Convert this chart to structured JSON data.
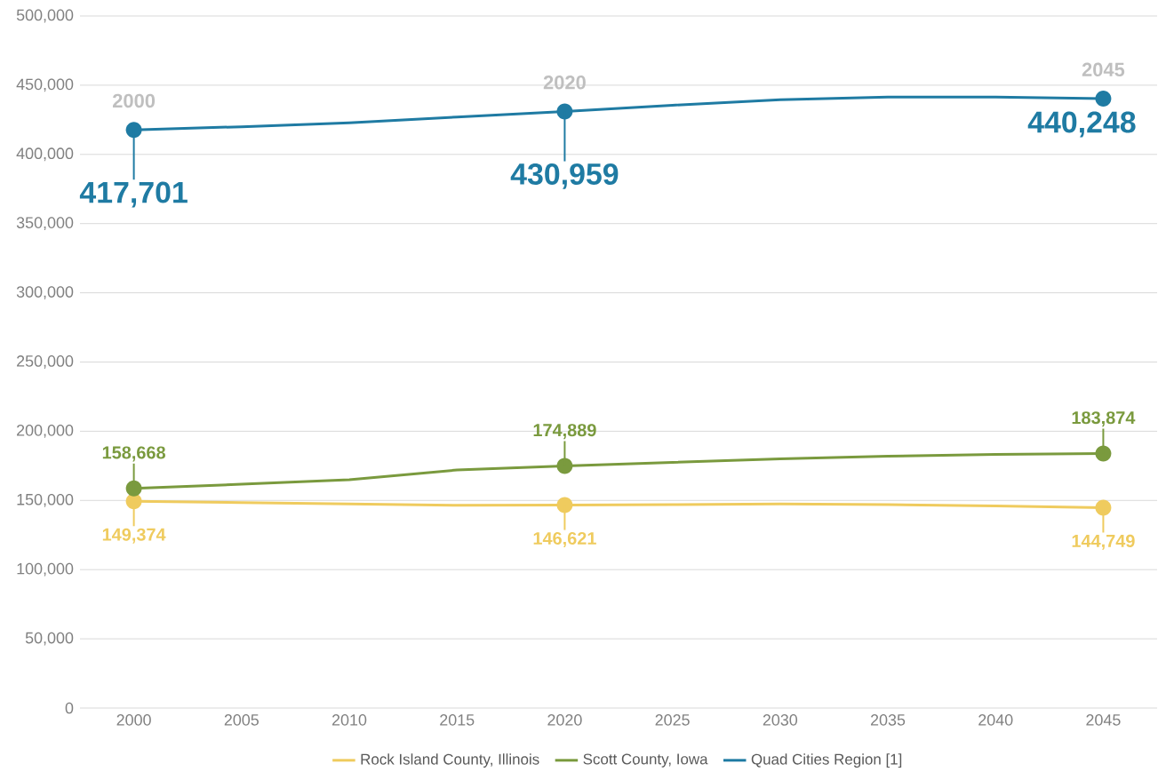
{
  "chart_data": {
    "type": "line",
    "categories": [
      "2000",
      "2005",
      "2010",
      "2015",
      "2020",
      "2025",
      "2030",
      "2035",
      "2040",
      "2045"
    ],
    "series": [
      {
        "name": "Rock Island County, Illinois",
        "color": "#efcb5e",
        "values": [
          149374,
          148500,
          147500,
          146500,
          146621,
          147000,
          147500,
          147000,
          146000,
          144749
        ],
        "value_labels": [
          "149,374",
          null,
          null,
          null,
          "146,621",
          null,
          null,
          null,
          null,
          "144,749"
        ]
      },
      {
        "name": "Scott County, Iowa",
        "color": "#7a9a3e",
        "values": [
          158668,
          161700,
          165000,
          172000,
          174889,
          177500,
          180000,
          182000,
          183200,
          183874
        ],
        "value_labels": [
          "158,668",
          null,
          null,
          null,
          "174,889",
          null,
          null,
          null,
          null,
          "183,874"
        ]
      },
      {
        "name": "Quad Cities Region [1]",
        "color": "#1f7ba3",
        "values": [
          417701,
          420000,
          422800,
          427000,
          430959,
          435500,
          439500,
          441500,
          441500,
          440248
        ],
        "value_labels": [
          "417,701",
          null,
          null,
          null,
          "430,959",
          null,
          null,
          null,
          null,
          "440,248"
        ]
      }
    ],
    "ylim": [
      0,
      500000
    ],
    "yticks": [
      {
        "value": 0,
        "label": "0"
      },
      {
        "value": 50000,
        "label": "50,000"
      },
      {
        "value": 100000,
        "label": "100,000"
      },
      {
        "value": 150000,
        "label": "150,000"
      },
      {
        "value": 200000,
        "label": "200,000"
      },
      {
        "value": 250000,
        "label": "250,000"
      },
      {
        "value": 300000,
        "label": "300,000"
      },
      {
        "value": 350000,
        "label": "350,000"
      },
      {
        "value": 400000,
        "label": "400,000"
      },
      {
        "value": 450000,
        "label": "450,000"
      },
      {
        "value": 500000,
        "label": "500,000"
      }
    ],
    "annotations": [
      {
        "text": "2000",
        "x": "2000",
        "y": 417701
      },
      {
        "text": "2020",
        "x": "2020",
        "y": 430959
      },
      {
        "text": "2045",
        "x": "2045",
        "y": 440248
      }
    ],
    "grid": "y",
    "legend": "bottom",
    "line_style": "solid"
  }
}
